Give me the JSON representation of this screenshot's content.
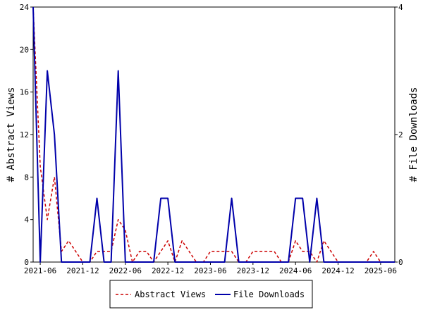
{
  "chart_data": {
    "type": "line",
    "x": [
      "2021-05",
      "2021-06",
      "2021-07",
      "2021-08",
      "2021-09",
      "2021-10",
      "2021-11",
      "2021-12",
      "2022-01",
      "2022-02",
      "2022-03",
      "2022-04",
      "2022-05",
      "2022-06",
      "2022-07",
      "2022-08",
      "2022-09",
      "2022-10",
      "2022-11",
      "2022-12",
      "2023-01",
      "2023-02",
      "2023-03",
      "2023-04",
      "2023-05",
      "2023-06",
      "2023-07",
      "2023-08",
      "2023-09",
      "2023-10",
      "2023-11",
      "2023-12",
      "2024-01",
      "2024-02",
      "2024-03",
      "2024-04",
      "2024-05",
      "2024-06",
      "2024-07",
      "2024-08",
      "2024-09",
      "2024-10",
      "2024-11",
      "2024-12",
      "2025-01",
      "2025-02",
      "2025-03",
      "2025-04",
      "2025-05",
      "2025-06",
      "2025-07",
      "2025-08"
    ],
    "x_ticks": [
      "2021-06",
      "2021-12",
      "2022-06",
      "2022-12",
      "2023-06",
      "2023-12",
      "2024-06",
      "2024-12",
      "2025-06"
    ],
    "left_axis": {
      "label": "# Abstract Views",
      "ylim": [
        0,
        24
      ],
      "ticks": [
        0,
        4,
        8,
        12,
        16,
        20,
        24
      ]
    },
    "right_axis": {
      "label": "# File Downloads",
      "ylim": [
        0,
        4
      ],
      "ticks": [
        0,
        2,
        4
      ]
    },
    "series": [
      {
        "name": "Abstract Views",
        "axis": "left",
        "color": "#cc0000",
        "style": "dashed",
        "values": [
          24,
          9,
          4,
          8,
          1,
          2,
          1,
          0,
          0,
          1,
          1,
          1,
          4,
          3,
          0,
          1,
          1,
          0,
          1,
          2,
          0,
          2,
          1,
          0,
          0,
          1,
          1,
          1,
          1,
          0,
          0,
          1,
          1,
          1,
          1,
          0,
          0,
          2,
          1,
          1,
          0,
          2,
          1,
          0,
          0,
          0,
          0,
          0,
          1,
          0,
          0,
          0
        ]
      },
      {
        "name": "File Downloads",
        "axis": "right",
        "color": "#0000aa",
        "style": "solid",
        "values": [
          4,
          0,
          3,
          2,
          0,
          0,
          0,
          0,
          0,
          1,
          0,
          0,
          3,
          0,
          0,
          0,
          0,
          0,
          1,
          1,
          0,
          0,
          0,
          0,
          0,
          0,
          0,
          0,
          1,
          0,
          0,
          0,
          0,
          0,
          0,
          0,
          0,
          1,
          1,
          0,
          1,
          0,
          0,
          0,
          0,
          0,
          0,
          0,
          0,
          0,
          0,
          0
        ]
      }
    ],
    "legend_position": "bottom",
    "grid": false
  }
}
